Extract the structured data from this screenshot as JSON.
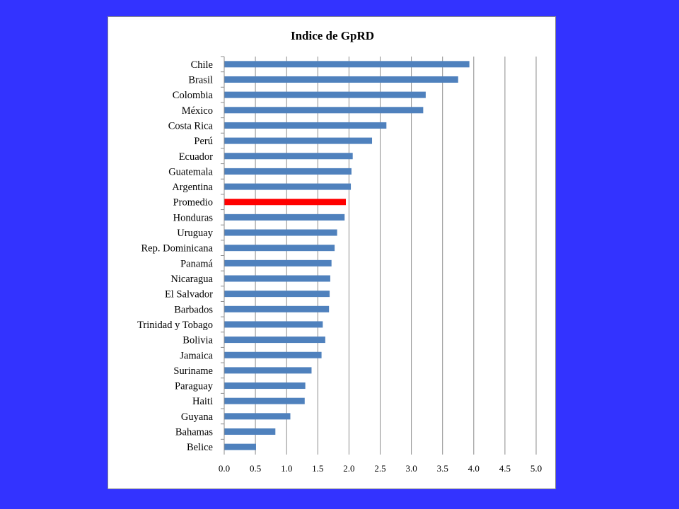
{
  "chart_data": {
    "type": "bar",
    "orientation": "horizontal",
    "title": "Indice  de GpRD",
    "xlabel": "",
    "ylabel": "",
    "xlim": [
      0,
      5
    ],
    "x_ticks": [
      "0.0",
      "0.5",
      "1.0",
      "1.5",
      "2.0",
      "2.5",
      "3.0",
      "3.5",
      "4.0",
      "4.5",
      "5.0"
    ],
    "grid": "vertical",
    "legend": "none",
    "bar_color": "#4f81bd",
    "highlight_color": "#ff0000",
    "highlight_category": "Promedio",
    "categories": [
      "Chile",
      "Brasil",
      "Colombia",
      "México",
      "Costa Rica",
      "Perú",
      "Ecuador",
      "Guatemala",
      "Argentina",
      "Promedio",
      "Honduras",
      "Uruguay",
      "Rep. Dominicana",
      "Panamá",
      "Nicaragua",
      "El Salvador",
      "Barbados",
      "Trinidad y Tobago",
      "Bolivia",
      "Jamaica",
      "Suriname",
      "Paraguay",
      "Haiti",
      "Guyana",
      "Bahamas",
      "Belice"
    ],
    "values": [
      3.93,
      3.75,
      3.23,
      3.19,
      2.6,
      2.37,
      2.06,
      2.04,
      2.03,
      1.95,
      1.93,
      1.81,
      1.77,
      1.72,
      1.7,
      1.69,
      1.68,
      1.58,
      1.62,
      1.56,
      1.4,
      1.3,
      1.29,
      1.06,
      0.82,
      0.51
    ]
  }
}
